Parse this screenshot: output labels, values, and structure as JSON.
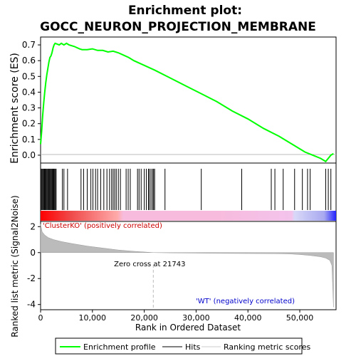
{
  "chart_data": {
    "type": "line",
    "title_lines": [
      "Enrichment plot:",
      "GOCC_NEURON_PROJECTION_MEMBRANE"
    ],
    "es_panel": {
      "ylabel": "Enrichment score (ES)",
      "yticks": [
        "0.0",
        "0.1",
        "0.2",
        "0.3",
        "0.4",
        "0.5",
        "0.6",
        "0.7"
      ],
      "ylim": [
        -0.05,
        0.75
      ],
      "series": [
        {
          "name": "Enrichment profile",
          "x": [
            0,
            200,
            400,
            600,
            800,
            1000,
            1200,
            1400,
            1600,
            1800,
            2000,
            2200,
            2400,
            2600,
            2800,
            3200,
            3600,
            4000,
            4500,
            5000,
            5500,
            6500,
            7500,
            8000,
            9000,
            10000,
            11000,
            12000,
            13000,
            14000,
            15000,
            16000,
            17000,
            18000,
            20000,
            22000,
            25000,
            28000,
            31000,
            34000,
            37000,
            40000,
            43000,
            46000,
            49000,
            51000,
            52500,
            54000,
            55000,
            55500,
            56000,
            56500
          ],
          "y": [
            0.07,
            0.15,
            0.25,
            0.33,
            0.4,
            0.46,
            0.51,
            0.55,
            0.59,
            0.62,
            0.63,
            0.65,
            0.68,
            0.7,
            0.71,
            0.705,
            0.7,
            0.71,
            0.7,
            0.71,
            0.7,
            0.69,
            0.675,
            0.67,
            0.67,
            0.675,
            0.665,
            0.665,
            0.655,
            0.66,
            0.65,
            0.635,
            0.62,
            0.6,
            0.57,
            0.54,
            0.49,
            0.44,
            0.39,
            0.34,
            0.28,
            0.23,
            0.17,
            0.12,
            0.06,
            0.02,
            0.0,
            -0.02,
            -0.04,
            -0.02,
            0.0,
            0.01
          ]
        }
      ]
    },
    "hits_panel": {
      "hit_positions": [
        150,
        300,
        450,
        600,
        750,
        900,
        1050,
        1200,
        1350,
        1500,
        1650,
        1800,
        1950,
        2100,
        2250,
        2400,
        2550,
        2700,
        2850,
        3000,
        4200,
        4500,
        5200,
        7800,
        8300,
        9000,
        9700,
        10100,
        10600,
        11000,
        11600,
        12200,
        12800,
        13300,
        13700,
        14000,
        14300,
        14600,
        15000,
        15400,
        16500,
        16900,
        17300,
        18700,
        19000,
        19400,
        20000,
        20400,
        20800,
        21000,
        21300,
        21600,
        21800,
        22000,
        24000,
        31000,
        38800,
        44500,
        45200,
        46800,
        49000,
        50500,
        51500,
        52000,
        55000,
        55500,
        56000
      ]
    },
    "rank_panel": {
      "ylabel": "Ranked list metric (Signal2Noise)",
      "yticks": [
        "-4",
        "-2",
        "0",
        "2"
      ],
      "ylim": [
        -4.4,
        2.4
      ],
      "zero_cross_label": "Zero cross at 21743",
      "zero_cross_x": 21743,
      "pos_label": "'ClusterKO' (positively correlated)",
      "neg_label": "'WT' (negatively correlated)",
      "profile_x": [
        0,
        300,
        800,
        1500,
        2500,
        4000,
        6000,
        9000,
        12000,
        15000,
        18000,
        21743,
        25000,
        30000,
        35000,
        40000,
        45000,
        48000,
        50000,
        52000,
        54000,
        55000,
        55800,
        56200,
        56500
      ],
      "profile_y": [
        2.2,
        1.6,
        1.35,
        1.15,
        1.0,
        0.85,
        0.7,
        0.5,
        0.35,
        0.2,
        0.1,
        0.0,
        -0.02,
        -0.04,
        -0.06,
        -0.07,
        -0.08,
        -0.1,
        -0.15,
        -0.22,
        -0.32,
        -0.42,
        -0.6,
        -1.0,
        -4.2
      ]
    },
    "xlabel": "Rank in Ordered Dataset",
    "xticks": [
      "0",
      "10,000",
      "20,000",
      "30,000",
      "40,000",
      "50,000"
    ],
    "xlim": [
      0,
      57000
    ],
    "legend": {
      "position": "bottom",
      "items": [
        {
          "label": "Enrichment profile",
          "color": "#00ff00"
        },
        {
          "label": "Hits",
          "color": "#000000"
        },
        {
          "label": "Ranking metric scores",
          "color": "#cccccc"
        }
      ]
    },
    "colors": {
      "es_line": "#00ff00",
      "hit": "#000000",
      "metric_fill": "#bbbbbb",
      "zero_line": "#cccccc",
      "pos_text": "#cc0000",
      "neg_text": "#0000cc"
    }
  }
}
